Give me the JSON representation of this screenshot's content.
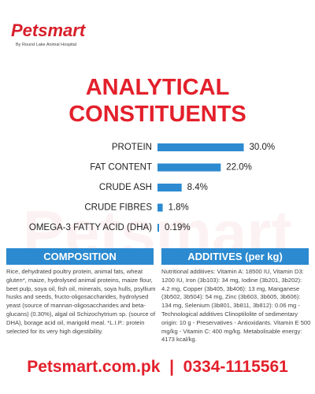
{
  "header": {
    "brand": "Petsmart",
    "tagline": "By Round Lake Animal Hospital"
  },
  "chart_data": {
    "type": "bar",
    "orientation": "horizontal",
    "title": "ANALYTICAL CONSTITUENTS",
    "categories": [
      "PROTEIN",
      "FAT CONTENT",
      "CRUDE ASH",
      "CRUDE FIBRES",
      "OMEGA-3 FATTY ACID (DHA)"
    ],
    "values": [
      30.0,
      22.0,
      8.4,
      1.8,
      0.19
    ],
    "value_labels": [
      "30.0%",
      "22.0%",
      "8.4%",
      "1.8%",
      "0.19%"
    ],
    "color": "#2b8ad0"
  },
  "composition": {
    "title": "COMPOSITION",
    "text": "Rice, dehydrated poultry protein, animal fats, wheat gluten*, maize, hydrolysed animal proteins, maize flour, beet pulp, soya oil, fish oil, minerals, soya hulls, psyllium husks and seeds, fructo-oligosaccharides, hydrolysed yeast (source of mannan-oligosaccharides and beta-glucans) (0.30%), algal oil Schizochytrium sp. (source of DHA), borage acid oil, marigold meal. *L.I.P.: protein selected for its very high digestibility."
  },
  "additives": {
    "title": "ADDITIVES (per kg)",
    "text": "Nutritional additives: Vitamin A: 18500 IU, Vitamin D3: 1200 IU, Iron (3b103): 34 mg, Iodine (3b201, 3b202): 4.2 mg, Copper (3b405, 3b406): 13 mg, Manganese (3b502, 3b504): 54 mg, Zinc (3b603, 3b605, 3b606): 134 mg, Selenium (3b801, 3b811, 3b812): 0.06 mg - Technological additives Clinoptilolite of sedimentary origin: 10 g - Preservatives - Antioxidants. Vitamin E 500 mg/kg - Vitamin C: 400 mg/kg. Metabolisable energy: 4173 kcal/kg."
  },
  "footer": {
    "website": "Petsmart.com.pk",
    "separator": "|",
    "phone": "0334-1115561"
  }
}
